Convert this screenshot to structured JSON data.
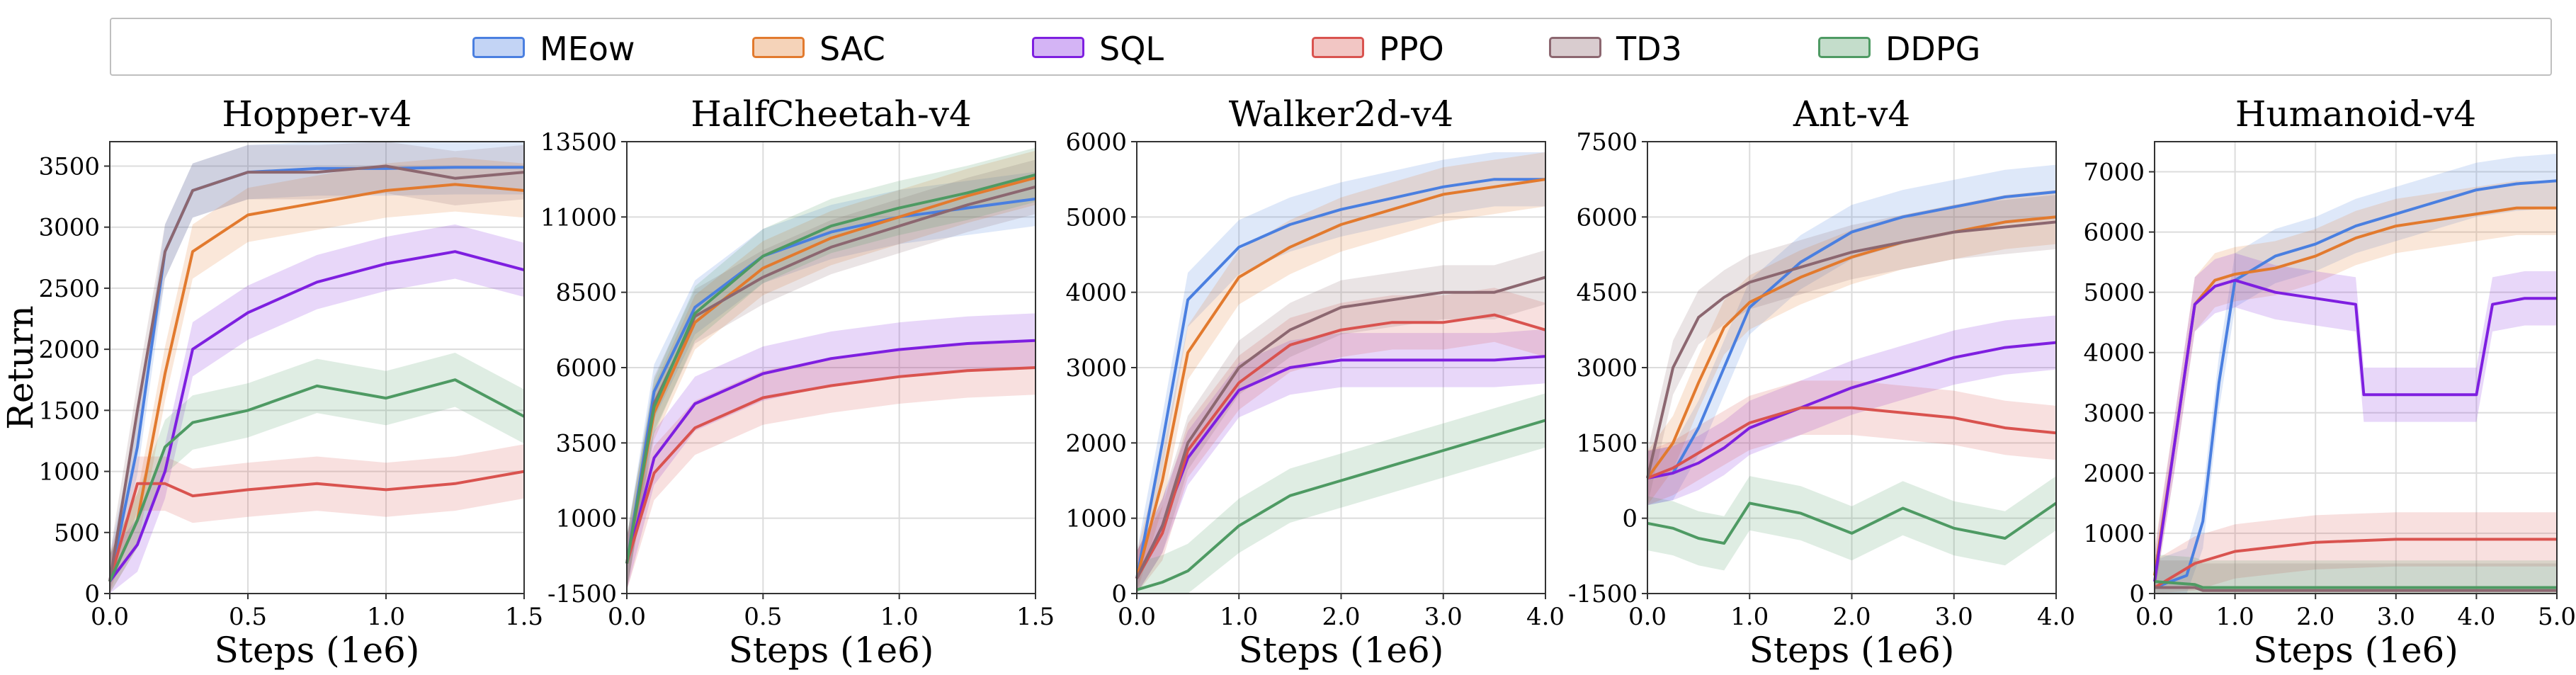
{
  "legend": [
    {
      "name": "MEow",
      "color": "#4a7fe0"
    },
    {
      "name": "SAC",
      "color": "#e27a2e"
    },
    {
      "name": "SQL",
      "color": "#7e1fe0"
    },
    {
      "name": "PPO",
      "color": "#d9534f"
    },
    {
      "name": "TD3",
      "color": "#8c6770"
    },
    {
      "name": "DDPG",
      "color": "#4e9a63"
    }
  ],
  "chart_data": [
    {
      "type": "line",
      "title": "Hopper-v4",
      "xlabel": "Steps (1e6)",
      "ylabel": "Return",
      "xlim": [
        0,
        1.5
      ],
      "ylim": [
        0,
        3700
      ],
      "xticks": [
        "0.0",
        "0.5",
        "1.0",
        "1.5"
      ],
      "yticks": [
        "0",
        "500",
        "1000",
        "1500",
        "2000",
        "2500",
        "3000",
        "3500"
      ],
      "series": [
        {
          "name": "MEow",
          "x": [
            0,
            0.1,
            0.2,
            0.3,
            0.5,
            0.75,
            1.0,
            1.25,
            1.5
          ],
          "values": [
            100,
            1200,
            2800,
            3300,
            3450,
            3480,
            3480,
            3490,
            3490
          ]
        },
        {
          "name": "SAC",
          "x": [
            0,
            0.1,
            0.2,
            0.3,
            0.5,
            0.75,
            1.0,
            1.25,
            1.5
          ],
          "values": [
            100,
            600,
            1800,
            2800,
            3100,
            3200,
            3300,
            3350,
            3300
          ]
        },
        {
          "name": "SQL",
          "x": [
            0,
            0.1,
            0.2,
            0.3,
            0.5,
            0.75,
            1.0,
            1.25,
            1.5
          ],
          "values": [
            100,
            400,
            1000,
            2000,
            2300,
            2550,
            2700,
            2800,
            2650
          ]
        },
        {
          "name": "PPO",
          "x": [
            0,
            0.1,
            0.2,
            0.3,
            0.5,
            0.75,
            1.0,
            1.25,
            1.5
          ],
          "values": [
            100,
            900,
            900,
            800,
            850,
            900,
            850,
            900,
            1000
          ]
        },
        {
          "name": "TD3",
          "x": [
            0,
            0.1,
            0.2,
            0.3,
            0.5,
            0.75,
            1.0,
            1.25,
            1.5
          ],
          "values": [
            100,
            1500,
            2800,
            3300,
            3450,
            3450,
            3500,
            3400,
            3450
          ]
        },
        {
          "name": "DDPG",
          "x": [
            0,
            0.1,
            0.2,
            0.3,
            0.5,
            0.75,
            1.0,
            1.25,
            1.5
          ],
          "values": [
            100,
            600,
            1200,
            1400,
            1500,
            1700,
            1600,
            1750,
            1450
          ]
        }
      ]
    },
    {
      "type": "line",
      "title": "HalfCheetah-v4",
      "xlabel": "Steps (1e6)",
      "ylabel": "",
      "xlim": [
        0,
        1.5
      ],
      "ylim": [
        -1500,
        13500
      ],
      "xticks": [
        "0.0",
        "0.5",
        "1.0",
        "1.5"
      ],
      "yticks": [
        "-1500",
        "1000",
        "3500",
        "6000",
        "8500",
        "11000",
        "13500"
      ],
      "series": [
        {
          "name": "MEow",
          "x": [
            0,
            0.1,
            0.25,
            0.5,
            0.75,
            1.0,
            1.25,
            1.5
          ],
          "values": [
            -500,
            5200,
            8000,
            9700,
            10500,
            11000,
            11300,
            11600
          ]
        },
        {
          "name": "SAC",
          "x": [
            0,
            0.1,
            0.25,
            0.5,
            0.75,
            1.0,
            1.25,
            1.5
          ],
          "values": [
            -500,
            4500,
            7500,
            9300,
            10300,
            11000,
            11700,
            12300
          ]
        },
        {
          "name": "SQL",
          "x": [
            0,
            0.1,
            0.25,
            0.5,
            0.75,
            1.0,
            1.25,
            1.5
          ],
          "values": [
            -500,
            3000,
            4800,
            5800,
            6300,
            6600,
            6800,
            6900
          ]
        },
        {
          "name": "PPO",
          "x": [
            0,
            0.1,
            0.25,
            0.5,
            0.75,
            1.0,
            1.25,
            1.5
          ],
          "values": [
            -500,
            2500,
            4000,
            5000,
            5400,
            5700,
            5900,
            6000
          ]
        },
        {
          "name": "TD3",
          "x": [
            0,
            0.1,
            0.25,
            0.5,
            0.75,
            1.0,
            1.25,
            1.5
          ],
          "values": [
            -500,
            4800,
            7700,
            9000,
            10000,
            10700,
            11400,
            12000
          ]
        },
        {
          "name": "DDPG",
          "x": [
            0,
            0.1,
            0.25,
            0.5,
            0.75,
            1.0,
            1.25,
            1.5
          ],
          "values": [
            -500,
            4700,
            7800,
            9700,
            10700,
            11300,
            11800,
            12400
          ]
        }
      ]
    },
    {
      "type": "line",
      "title": "Walker2d-v4",
      "xlabel": "Steps (1e6)",
      "ylabel": "",
      "xlim": [
        0,
        4.0
      ],
      "ylim": [
        0,
        6000
      ],
      "xticks": [
        "0.0",
        "1.0",
        "2.0",
        "3.0",
        "4.0"
      ],
      "yticks": [
        "0",
        "1000",
        "2000",
        "3000",
        "4000",
        "5000",
        "6000"
      ],
      "series": [
        {
          "name": "MEow",
          "x": [
            0,
            0.25,
            0.5,
            1.0,
            1.5,
            2.0,
            2.5,
            3.0,
            3.5,
            4.0
          ],
          "values": [
            200,
            2000,
            3900,
            4600,
            4900,
            5100,
            5250,
            5400,
            5500,
            5500
          ]
        },
        {
          "name": "SAC",
          "x": [
            0,
            0.25,
            0.5,
            1.0,
            1.5,
            2.0,
            2.5,
            3.0,
            3.5,
            4.0
          ],
          "values": [
            200,
            1500,
            3200,
            4200,
            4600,
            4900,
            5100,
            5300,
            5400,
            5500
          ]
        },
        {
          "name": "SQL",
          "x": [
            0,
            0.25,
            0.5,
            1.0,
            1.5,
            2.0,
            2.5,
            3.0,
            3.5,
            4.0
          ],
          "values": [
            200,
            900,
            1800,
            2700,
            3000,
            3100,
            3100,
            3100,
            3100,
            3150
          ]
        },
        {
          "name": "PPO",
          "x": [
            0,
            0.25,
            0.5,
            1.0,
            1.5,
            2.0,
            2.5,
            3.0,
            3.5,
            4.0
          ],
          "values": [
            200,
            800,
            1900,
            2800,
            3300,
            3500,
            3600,
            3600,
            3700,
            3500
          ]
        },
        {
          "name": "TD3",
          "x": [
            0,
            0.25,
            0.5,
            1.0,
            1.5,
            2.0,
            2.5,
            3.0,
            3.5,
            4.0
          ],
          "values": [
            200,
            900,
            2000,
            3000,
            3500,
            3800,
            3900,
            4000,
            4000,
            4200
          ]
        },
        {
          "name": "DDPG",
          "x": [
            0,
            0.25,
            0.5,
            1.0,
            1.5,
            2.0,
            2.5,
            3.0,
            3.5,
            4.0
          ],
          "values": [
            50,
            150,
            300,
            900,
            1300,
            1500,
            1700,
            1900,
            2100,
            2300
          ]
        }
      ]
    },
    {
      "type": "line",
      "title": "Ant-v4",
      "xlabel": "Steps (1e6)",
      "ylabel": "",
      "xlim": [
        0,
        4.0
      ],
      "ylim": [
        -1500,
        7500
      ],
      "xticks": [
        "0.0",
        "1.0",
        "2.0",
        "3.0",
        "4.0"
      ],
      "yticks": [
        "-1500",
        "0",
        "1500",
        "3000",
        "4500",
        "6000",
        "7500"
      ],
      "series": [
        {
          "name": "MEow",
          "x": [
            0,
            0.25,
            0.5,
            0.75,
            1.0,
            1.5,
            2.0,
            2.5,
            3.0,
            3.5,
            4.0
          ],
          "values": [
            800,
            900,
            1800,
            3000,
            4200,
            5100,
            5700,
            6000,
            6200,
            6400,
            6500
          ]
        },
        {
          "name": "SAC",
          "x": [
            0,
            0.25,
            0.5,
            0.75,
            1.0,
            1.5,
            2.0,
            2.5,
            3.0,
            3.5,
            4.0
          ],
          "values": [
            800,
            1500,
            2700,
            3800,
            4300,
            4800,
            5200,
            5500,
            5700,
            5900,
            6000
          ]
        },
        {
          "name": "SQL",
          "x": [
            0,
            0.25,
            0.5,
            0.75,
            1.0,
            1.5,
            2.0,
            2.5,
            3.0,
            3.5,
            4.0
          ],
          "values": [
            800,
            900,
            1100,
            1400,
            1800,
            2200,
            2600,
            2900,
            3200,
            3400,
            3500
          ]
        },
        {
          "name": "PPO",
          "x": [
            0,
            0.25,
            0.5,
            0.75,
            1.0,
            1.5,
            2.0,
            2.5,
            3.0,
            3.5,
            4.0
          ],
          "values": [
            800,
            1000,
            1300,
            1600,
            1900,
            2200,
            2200,
            2100,
            2000,
            1800,
            1700
          ]
        },
        {
          "name": "TD3",
          "x": [
            0,
            0.25,
            0.5,
            0.75,
            1.0,
            1.5,
            2.0,
            2.5,
            3.0,
            3.5,
            4.0
          ],
          "values": [
            800,
            3000,
            4000,
            4400,
            4700,
            5000,
            5300,
            5500,
            5700,
            5800,
            5900
          ]
        },
        {
          "name": "DDPG",
          "x": [
            0,
            0.25,
            0.5,
            0.75,
            1.0,
            1.5,
            2.0,
            2.5,
            3.0,
            3.5,
            4.0
          ],
          "values": [
            -100,
            -200,
            -400,
            -500,
            300,
            100,
            -300,
            200,
            -200,
            -400,
            300
          ]
        }
      ]
    },
    {
      "type": "line",
      "title": "Humanoid-v4",
      "xlabel": "Steps (1e6)",
      "ylabel": "",
      "xlim": [
        0,
        5.0
      ],
      "ylim": [
        0,
        7500
      ],
      "xticks": [
        "0.0",
        "1.0",
        "2.0",
        "3.0",
        "4.0",
        "5.0"
      ],
      "yticks": [
        "0",
        "1000",
        "2000",
        "3000",
        "4000",
        "5000",
        "6000",
        "7000"
      ],
      "series": [
        {
          "name": "MEow",
          "x": [
            0,
            0.4,
            0.6,
            0.8,
            1.0,
            1.5,
            2.0,
            2.5,
            3.0,
            3.5,
            4.0,
            4.5,
            5.0
          ],
          "values": [
            100,
            300,
            1200,
            3500,
            5200,
            5600,
            5800,
            6100,
            6300,
            6500,
            6700,
            6800,
            6850
          ]
        },
        {
          "name": "SAC",
          "x": [
            0,
            0.25,
            0.5,
            0.75,
            1.0,
            1.5,
            2.0,
            2.5,
            3.0,
            3.5,
            4.0,
            4.5,
            5.0
          ],
          "values": [
            300,
            2500,
            4800,
            5200,
            5300,
            5400,
            5600,
            5900,
            6100,
            6200,
            6300,
            6400,
            6400
          ]
        },
        {
          "name": "SQL",
          "x": [
            0,
            0.25,
            0.5,
            0.75,
            1.0,
            1.5,
            2.0,
            2.5,
            2.6,
            3.0,
            3.5,
            4.0,
            4.2,
            4.6,
            5.0
          ],
          "values": [
            200,
            2500,
            4800,
            5100,
            5200,
            5000,
            4900,
            4800,
            3300,
            3300,
            3300,
            3300,
            4800,
            4900,
            4900
          ]
        },
        {
          "name": "PPO",
          "x": [
            0,
            0.5,
            1.0,
            2.0,
            3.0,
            4.0,
            5.0
          ],
          "values": [
            100,
            500,
            700,
            850,
            900,
            900,
            900
          ]
        },
        {
          "name": "TD3",
          "x": [
            0,
            0.5,
            0.6,
            1.0,
            2.0,
            3.0,
            4.0,
            5.0
          ],
          "values": [
            100,
            100,
            50,
            50,
            50,
            50,
            50,
            50
          ]
        },
        {
          "name": "DDPG",
          "x": [
            0,
            0.5,
            0.6,
            1.0,
            2.0,
            3.0,
            4.0,
            5.0
          ],
          "values": [
            200,
            150,
            100,
            100,
            100,
            100,
            100,
            100
          ]
        }
      ]
    }
  ]
}
